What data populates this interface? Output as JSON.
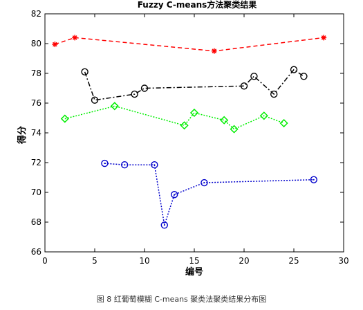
{
  "caption": "图 8  红葡萄模糊 C-means 聚类法聚类结果分布图",
  "chart_data": {
    "type": "line",
    "title": "Fuzzy C-means方法聚类结果",
    "xlabel": "编号",
    "ylabel": "得分",
    "xlim": [
      0,
      30
    ],
    "ylim": [
      66,
      82
    ],
    "xticks": [
      0,
      5,
      10,
      15,
      20,
      25,
      30
    ],
    "yticks": [
      66,
      68,
      70,
      72,
      74,
      76,
      78,
      80,
      82
    ],
    "grid": false,
    "series": [
      {
        "color": "#ff0000",
        "marker": "star",
        "style": "dashed",
        "x": [
          1,
          3,
          17,
          28
        ],
        "y": [
          79.95,
          80.4,
          79.5,
          80.4
        ]
      },
      {
        "color": "#000000",
        "marker": "circle",
        "style": "dashdot",
        "x": [
          4,
          5,
          9,
          10,
          20,
          21,
          23,
          25,
          26
        ],
        "y": [
          78.1,
          76.2,
          76.6,
          77.0,
          77.15,
          77.8,
          76.6,
          78.25,
          77.8
        ]
      },
      {
        "color": "#00ee00",
        "marker": "diamond",
        "style": "dotted",
        "x": [
          2,
          7,
          14,
          15,
          18,
          19,
          22,
          24
        ],
        "y": [
          74.95,
          75.8,
          74.5,
          75.35,
          74.85,
          74.25,
          75.15,
          74.65
        ]
      },
      {
        "color": "#0000cc",
        "marker": "circle-dot",
        "style": "dotted",
        "x": [
          6,
          8,
          11,
          12,
          13,
          16,
          27
        ],
        "y": [
          71.95,
          71.85,
          71.85,
          67.8,
          69.85,
          70.65,
          70.85
        ]
      }
    ]
  }
}
